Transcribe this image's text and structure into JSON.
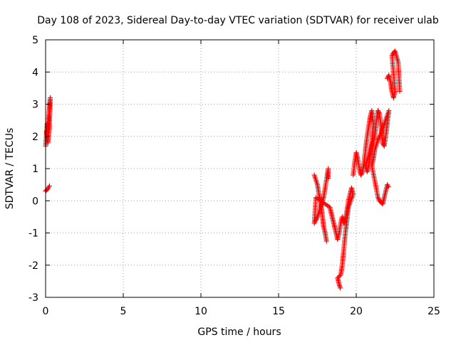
{
  "chart_data": {
    "type": "scatter",
    "title": "Day 108 of 2023, Sidereal Day-to-day VTEC variation (SDTVAR) for receiver ulab",
    "xlabel": "GPS time / hours",
    "ylabel": "SDTVAR / TECUs",
    "xlim": [
      0,
      25
    ],
    "ylim": [
      -3,
      5
    ],
    "xticks": [
      "0",
      "5",
      "10",
      "15",
      "20",
      "25"
    ],
    "yticks": [
      "-3",
      "-2",
      "-1",
      "0",
      "1",
      "2",
      "3",
      "4",
      "5"
    ],
    "grid": true,
    "marker": "plus",
    "series_color": "#ff0000",
    "segments": [
      [
        0.0,
        1.7
      ],
      [
        0.05,
        2.0
      ],
      [
        0.1,
        2.4
      ],
      [
        0.15,
        2.2
      ],
      [
        0.2,
        2.6
      ],
      [
        0.25,
        2.9
      ],
      [
        0.3,
        3.2
      ],
      [
        0.25,
        2.3
      ],
      [
        0.15,
        1.8
      ],
      [
        0.05,
        2.2
      ],
      [
        0.0,
        0.3
      ],
      [
        0.1,
        0.35
      ],
      [
        0.2,
        0.42
      ],
      [
        0.3,
        0.5
      ],
      [
        17.3,
        0.8
      ],
      [
        17.5,
        0.5
      ],
      [
        17.6,
        0.2
      ],
      [
        17.7,
        0.0
      ],
      [
        17.8,
        -0.4
      ],
      [
        17.9,
        -0.8
      ],
      [
        18.0,
        -1.0
      ],
      [
        18.1,
        -1.3
      ],
      [
        18.2,
        0.7
      ],
      [
        18.2,
        1.0
      ],
      [
        18.0,
        0.4
      ],
      [
        17.9,
        0.1
      ],
      [
        17.7,
        -0.2
      ],
      [
        17.5,
        -0.5
      ],
      [
        17.3,
        -0.7
      ],
      [
        17.4,
        0.1
      ],
      [
        18.3,
        -0.2
      ],
      [
        18.4,
        -0.4
      ],
      [
        18.5,
        -0.6
      ],
      [
        18.6,
        -0.8
      ],
      [
        18.7,
        -1.0
      ],
      [
        18.8,
        -1.2
      ],
      [
        18.9,
        -1.0
      ],
      [
        19.0,
        -0.7
      ],
      [
        19.1,
        -0.5
      ],
      [
        19.2,
        -0.7
      ],
      [
        19.3,
        -0.6
      ],
      [
        19.4,
        -0.3
      ],
      [
        19.5,
        0.0
      ],
      [
        19.6,
        0.2
      ],
      [
        19.7,
        0.4
      ],
      [
        19.8,
        0.2
      ],
      [
        19.5,
        -0.2
      ],
      [
        19.4,
        -0.6
      ],
      [
        19.3,
        -1.0
      ],
      [
        19.2,
        -1.5
      ],
      [
        19.1,
        -2.0
      ],
      [
        19.0,
        -2.3
      ],
      [
        18.8,
        -2.4
      ],
      [
        18.9,
        -2.6
      ],
      [
        19.0,
        -2.75
      ],
      [
        19.8,
        0.8
      ],
      [
        19.9,
        1.2
      ],
      [
        20.0,
        1.5
      ],
      [
        20.1,
        1.3
      ],
      [
        20.2,
        1.0
      ],
      [
        20.3,
        0.8
      ],
      [
        20.4,
        0.9
      ],
      [
        20.5,
        1.2
      ],
      [
        20.6,
        1.6
      ],
      [
        20.7,
        2.0
      ],
      [
        20.8,
        2.3
      ],
      [
        20.9,
        2.6
      ],
      [
        21.0,
        2.8
      ],
      [
        21.1,
        2.4
      ],
      [
        21.0,
        1.8
      ],
      [
        20.9,
        1.4
      ],
      [
        20.8,
        1.1
      ],
      [
        20.7,
        0.9
      ],
      [
        20.6,
        1.1
      ],
      [
        21.2,
        2.0
      ],
      [
        21.3,
        2.5
      ],
      [
        21.4,
        2.8
      ],
      [
        21.5,
        2.7
      ],
      [
        21.6,
        2.3
      ],
      [
        21.7,
        1.8
      ],
      [
        21.8,
        1.7
      ],
      [
        21.9,
        2.0
      ],
      [
        22.0,
        2.4
      ],
      [
        22.1,
        2.8
      ],
      [
        21.6,
        2.1
      ],
      [
        21.4,
        1.9
      ],
      [
        21.2,
        1.6
      ],
      [
        21.1,
        1.3
      ],
      [
        21.0,
        1.1
      ],
      [
        21.4,
        0.1
      ],
      [
        21.5,
        0.0
      ],
      [
        21.6,
        -0.05
      ],
      [
        21.7,
        -0.1
      ],
      [
        21.8,
        0.1
      ],
      [
        22.0,
        0.5
      ],
      [
        22.1,
        0.4
      ],
      [
        22.0,
        3.8
      ],
      [
        22.1,
        3.9
      ],
      [
        22.2,
        3.7
      ],
      [
        22.3,
        3.4
      ],
      [
        22.4,
        3.2
      ],
      [
        22.5,
        3.4
      ],
      [
        22.3,
        4.5
      ],
      [
        22.4,
        4.6
      ],
      [
        22.5,
        4.65
      ],
      [
        22.7,
        4.3
      ],
      [
        22.8,
        3.4
      ]
    ]
  }
}
